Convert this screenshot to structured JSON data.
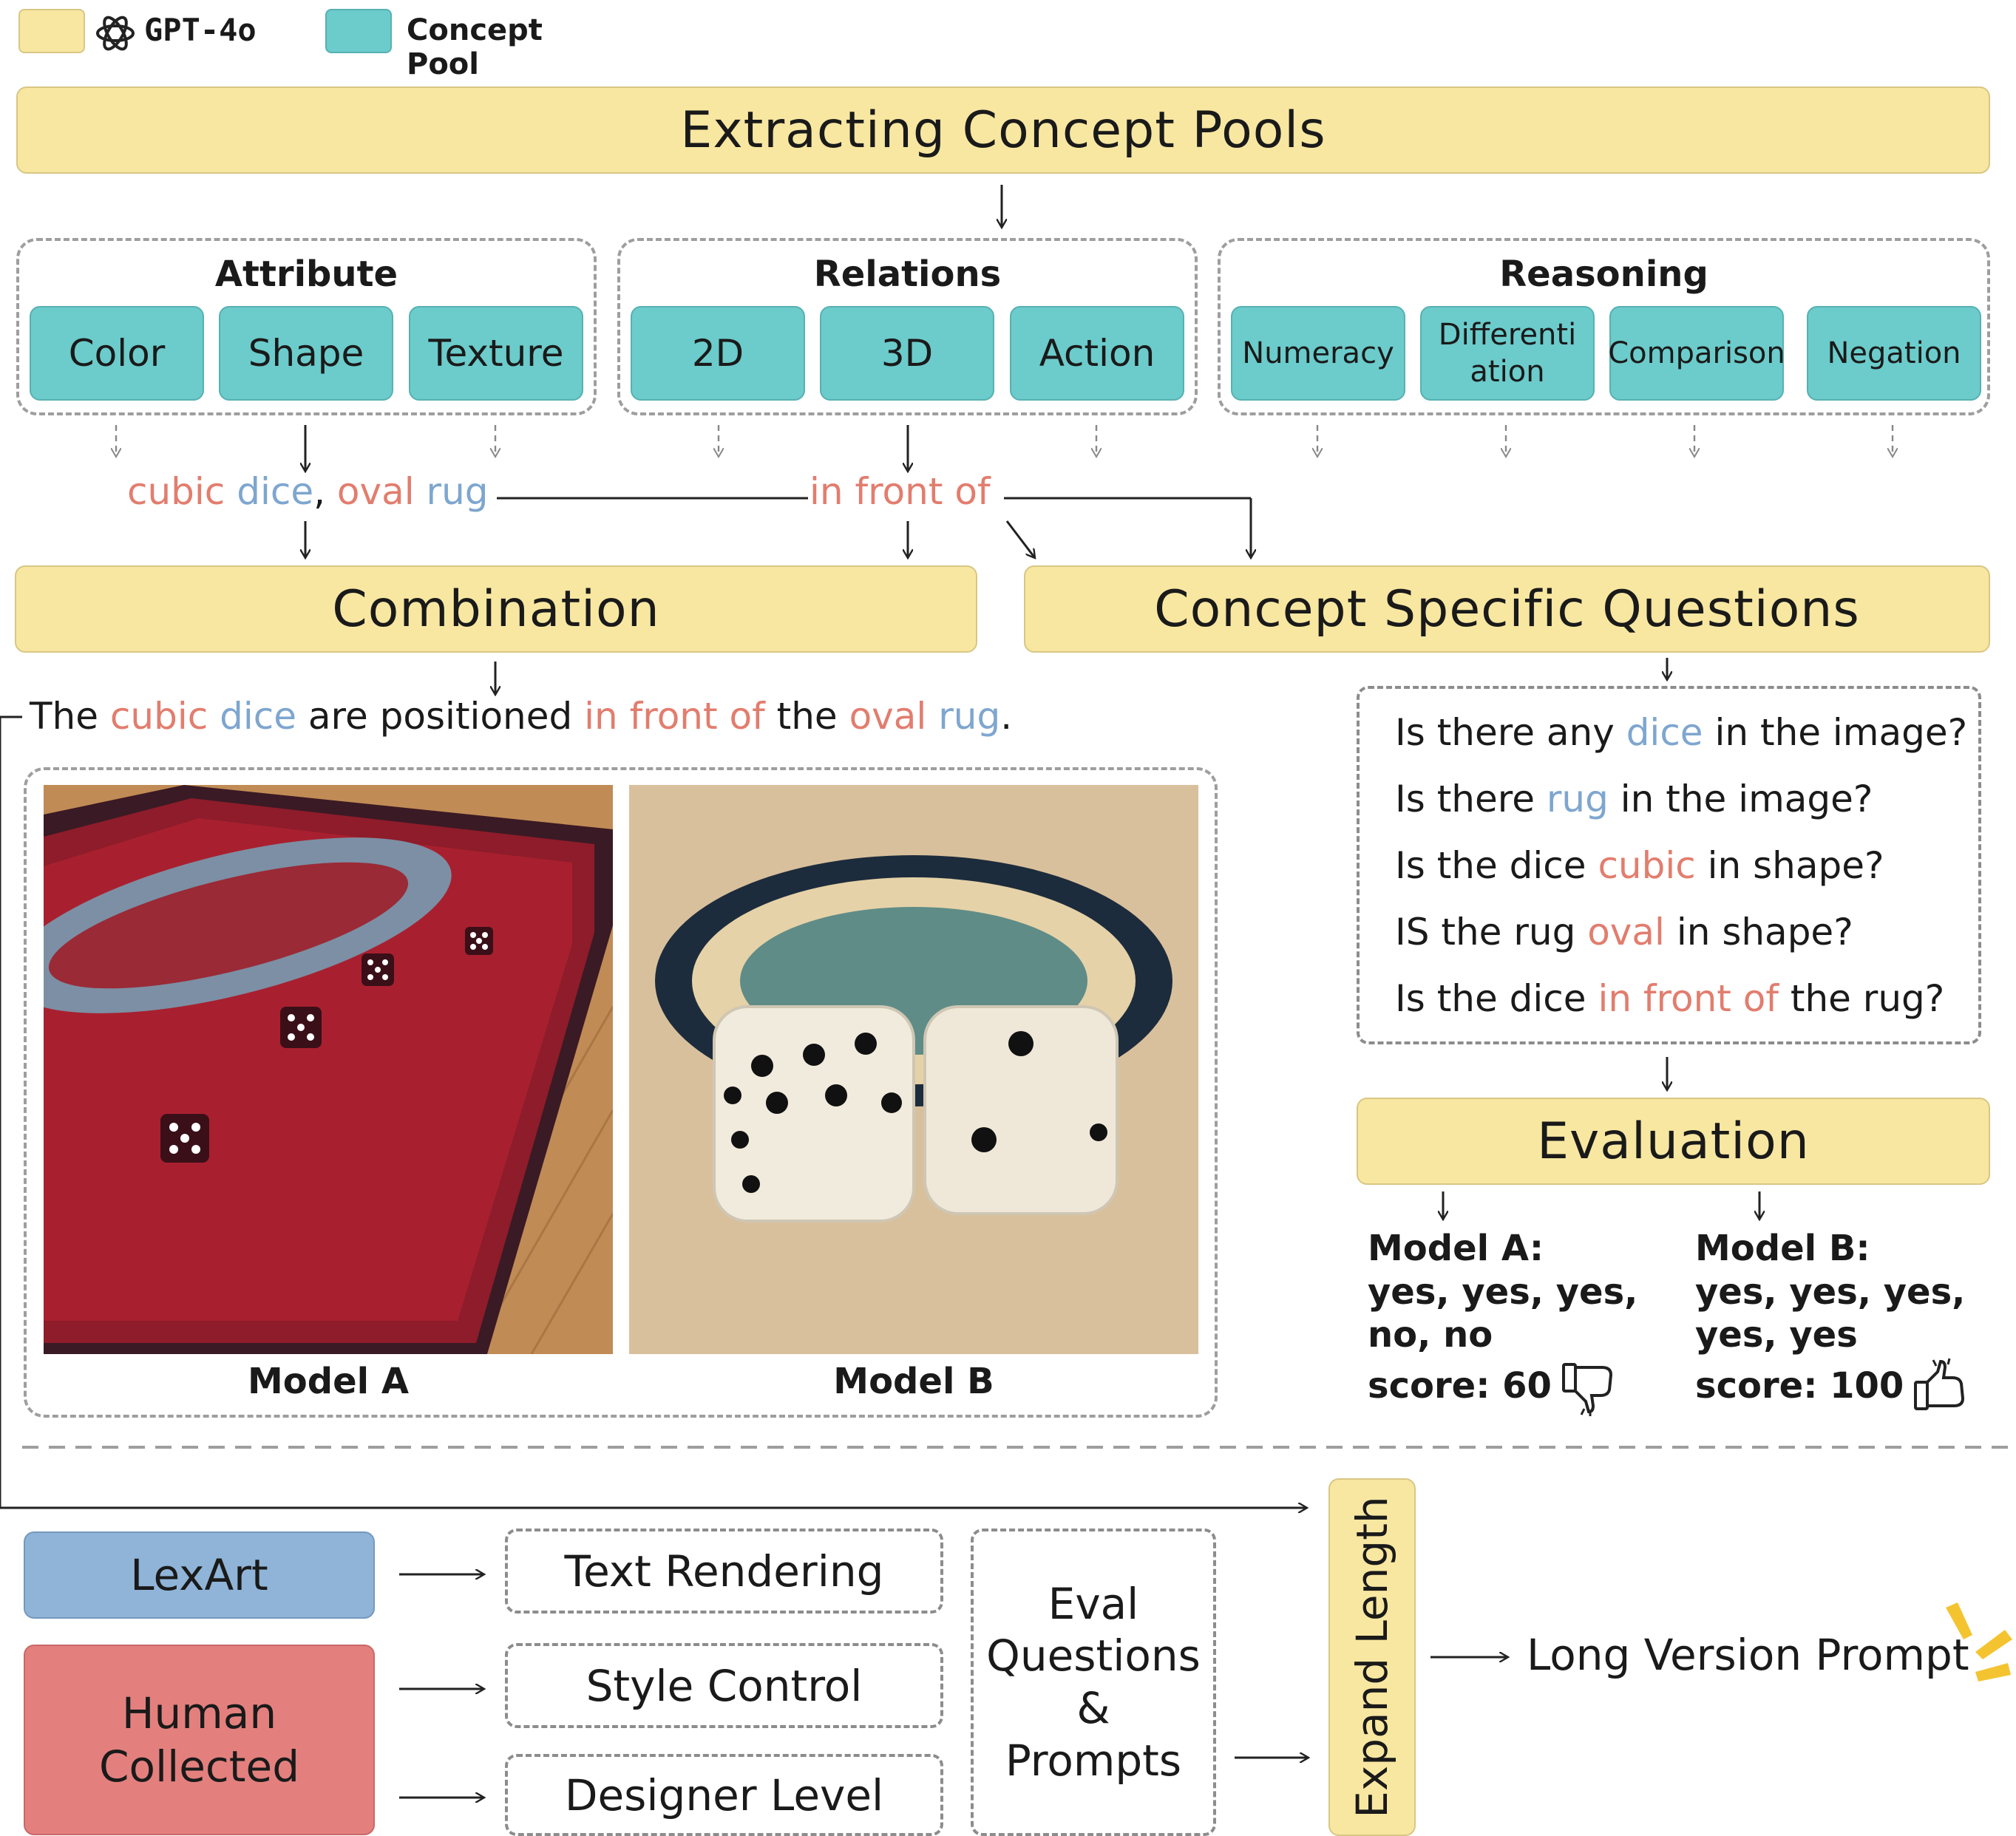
{
  "legend": {
    "gpt_label": "GPT-4o",
    "pool_label": "Concept Pool",
    "gpt_color": "#f8e7a1",
    "pool_color": "#6ccbcb"
  },
  "extracting": "Extracting Concept Pools",
  "groups": [
    {
      "title": "Attribute",
      "items": [
        "Color",
        "Shape",
        "Texture"
      ]
    },
    {
      "title": "Relations",
      "items": [
        "2D",
        "3D",
        "Action"
      ]
    },
    {
      "title": "Reasoning",
      "items": [
        "Numeracy",
        "Differenti ation",
        "Comparison",
        "Negation"
      ]
    }
  ],
  "concepts": {
    "cubic": "cubic",
    "dice": "dice",
    "comma": ",",
    "oval": "oval",
    "rug": "rug",
    "in": "in",
    "front": "front",
    "of": "of"
  },
  "combination": "Combination",
  "concept_questions": "Concept Specific Questions",
  "sentence": {
    "the": "The",
    "cubic": "cubic",
    "dice": "dice",
    "are_positioned": "are positioned",
    "in": "in",
    "front": "front",
    "of": "of",
    "the2": "the",
    "oval": "oval",
    "rug": "rug",
    "period": "."
  },
  "questions": [
    {
      "pre": "Is there any",
      "hl": "dice",
      "hl_color": "blue",
      "post": "in the image?"
    },
    {
      "pre": "Is there",
      "hl": "rug",
      "hl_color": "blue",
      "post": "in the image?"
    },
    {
      "pre": "Is the dice",
      "hl": "cubic",
      "hl_color": "red",
      "post": "in shape?"
    },
    {
      "pre": "IS the rug",
      "hl": "oval",
      "hl_color": "red",
      "post": "in shape?"
    },
    {
      "pre": "Is the dice",
      "hl": "in front of",
      "hl_color": "red",
      "post": "the rug?"
    }
  ],
  "evaluation": "Evaluation",
  "models": [
    {
      "label": "Model A",
      "result_title": "Model A:",
      "line1": "yes, yes, yes,",
      "line2": "no, no",
      "score": "score: 60",
      "verdict_icon": "thumbs-down-icon"
    },
    {
      "label": "Model B",
      "result_title": "Model B:",
      "line1": "yes, yes, yes,",
      "line2": "yes, yes",
      "score": "score: 100",
      "verdict_icon": "thumbs-up-icon"
    }
  ],
  "bottom": {
    "lexart": "LexArt",
    "human_line1": "Human",
    "human_line2": "Collected",
    "text_rendering": "Text Rendering",
    "style_control": "Style Control",
    "designer_level": "Designer Level",
    "eval_line1": "Eval",
    "eval_line2": "Questions",
    "eval_line3": "&",
    "eval_line4": "Prompts",
    "expand_length": "Expand Length",
    "long_version": "Long Version Prompt",
    "lexart_color": "#8fb4d8",
    "human_color": "#e3807e"
  }
}
